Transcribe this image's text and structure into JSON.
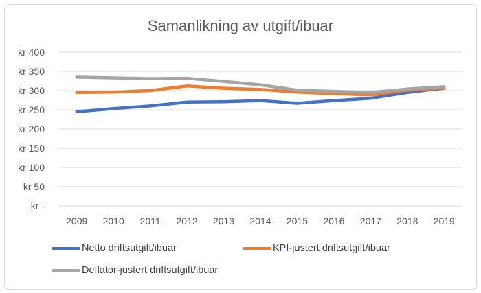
{
  "chart": {
    "title": "Samanlikning av utgift/ibuar"
  },
  "chart_data": {
    "type": "line",
    "title": "Samanlikning av utgift/ibuar",
    "categories": [
      "2009",
      "2010",
      "2011",
      "2012",
      "2013",
      "2014",
      "2015",
      "2016",
      "2017",
      "2018",
      "2019"
    ],
    "series": [
      {
        "name": "Netto driftsutgift/ibuar",
        "color": "#4472C4",
        "values": [
          245,
          253,
          260,
          270,
          271,
          274,
          267,
          274,
          280,
          295,
          306
        ]
      },
      {
        "name": "KPI-justert driftsutgift/ibuar",
        "color": "#ED7D31",
        "values": [
          295,
          296,
          300,
          312,
          306,
          303,
          296,
          292,
          289,
          301,
          307
        ]
      },
      {
        "name": "Deflator-justert driftsutgift/ibuar",
        "color": "#A5A5A5",
        "values": [
          335,
          333,
          331,
          332,
          324,
          315,
          301,
          298,
          295,
          304,
          310
        ]
      }
    ],
    "xlabel": "",
    "ylabel": "",
    "y_axis": {
      "unit": "kr",
      "min": 0,
      "max": 400,
      "step": 50,
      "tick_values": [
        0,
        50,
        100,
        150,
        200,
        250,
        300,
        350,
        400
      ],
      "tick_labels": [
        "kr -",
        "kr 50",
        "kr 100",
        "kr 150",
        "kr 200",
        "kr 250",
        "kr 300",
        "kr 350",
        "kr 400"
      ]
    },
    "grid": true,
    "legend_position": "bottom-left"
  },
  "legend": {
    "items": [
      {
        "label": "Netto driftsutgift/ibuar",
        "color": "#4472C4"
      },
      {
        "label": "KPI-justert driftsutgift/ibuar",
        "color": "#ED7D31"
      },
      {
        "label": "Deflator-justert driftsutgift/ibuar",
        "color": "#A5A5A5"
      }
    ]
  },
  "colors": {
    "background": "#FFFFFF",
    "border": "#D9D9D9",
    "gridline": "#D9D9D9",
    "title_text": "#595959",
    "axis_text": "#595959",
    "legend_text": "#404040"
  }
}
